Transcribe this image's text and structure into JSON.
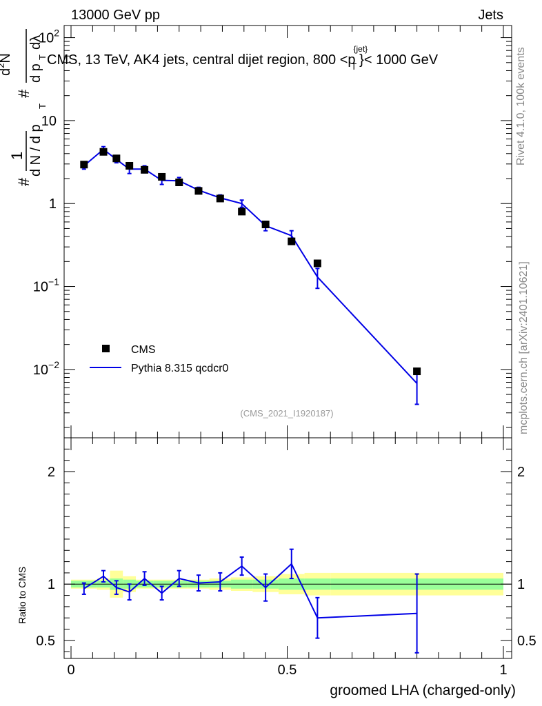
{
  "header": {
    "left": "13000 GeV pp",
    "right": "Jets"
  },
  "plot_title": "CMS, 13 TeV, AK4 jets, central dijet region, 800 <p",
  "plot_title_sup": "{jet}",
  "plot_title_sub": "T",
  "plot_title_end": "}< 1000 GeV",
  "side_label_top": "Rivet 4.1.0,  100k events",
  "side_label_bottom": "mcplots.cern.ch [arXiv:2401.10621]",
  "analysis_id": "(CMS_2021_I1920187)",
  "ylabel_main": {
    "hash1": "#",
    "one": "1",
    "dN": "d N / d p",
    "dN_sub": "T",
    "hash2": "#",
    "d2N": "d",
    "d2N_sup": "2",
    "d2N_end": "N",
    "dpt": "d p",
    "dpt_sub": "T",
    "dlambda": "dλ"
  },
  "ylabel_ratio": "Ratio to CMS",
  "xlabel": "groomed LHA (charged-only)",
  "legend": {
    "data": "CMS",
    "mc": "Pythia 8.315 qcdcr0"
  },
  "colors": {
    "mc": "#0000e6",
    "band_green": "#99ff99",
    "band_yellow": "#ffff99",
    "data": "#000000"
  },
  "chart_data": {
    "type": "line",
    "title": "CMS, 13 TeV, AK4 jets, central dijet region, 800 < pT(jet) < 1000 GeV",
    "xlabel": "groomed LHA (charged-only)",
    "ylabel": "1/dN/dpT d2N/dpT dlambda",
    "xlim": [
      0,
      1
    ],
    "ylim_main": [
      0.0015,
      140
    ],
    "yscale_main": "log",
    "ylim_ratio": [
      0.34,
      2.3
    ],
    "main_ticks": [
      {
        "v": 100,
        "base": "10",
        "exp": "2"
      },
      {
        "v": 10,
        "base": "10",
        "exp": ""
      },
      {
        "v": 1,
        "base": "1",
        "exp": ""
      },
      {
        "v": 0.1,
        "base": "10",
        "exp": "−1"
      },
      {
        "v": 0.01,
        "base": "10",
        "exp": "−2"
      }
    ],
    "ratio_ticks": [
      {
        "v": 2,
        "label": "2"
      },
      {
        "v": 1,
        "label": "1"
      },
      {
        "v": 0.5,
        "label": "0.5"
      }
    ],
    "x_ticks": [
      {
        "v": 0,
        "label": "0"
      },
      {
        "v": 0.5,
        "label": "0.5"
      },
      {
        "v": 1,
        "label": "1"
      }
    ],
    "bin_edges": [
      0.0,
      0.06,
      0.09,
      0.12,
      0.15,
      0.19,
      0.23,
      0.27,
      0.32,
      0.37,
      0.42,
      0.48,
      0.54,
      0.6,
      1.0
    ],
    "data": {
      "name": "CMS",
      "x": [
        0.03,
        0.075,
        0.105,
        0.135,
        0.17,
        0.21,
        0.25,
        0.295,
        0.345,
        0.395,
        0.45,
        0.51,
        0.57,
        0.8
      ],
      "y": [
        2.95,
        4.2,
        3.5,
        2.85,
        2.55,
        2.1,
        1.8,
        1.42,
        1.15,
        0.8,
        0.56,
        0.35,
        0.19,
        0.0095
      ]
    },
    "mc": {
      "name": "Pythia 8.315 qcdcr0",
      "x": [
        0.03,
        0.075,
        0.105,
        0.135,
        0.17,
        0.21,
        0.25,
        0.295,
        0.345,
        0.395,
        0.45,
        0.51,
        0.57,
        0.8
      ],
      "y": [
        2.85,
        4.5,
        3.4,
        2.6,
        2.6,
        1.9,
        1.88,
        1.45,
        1.17,
        1.0,
        0.54,
        0.41,
        0.13,
        0.0068
      ],
      "err": [
        0.25,
        0.35,
        0.3,
        0.3,
        0.25,
        0.2,
        0.18,
        0.12,
        0.1,
        0.1,
        0.07,
        0.06,
        0.035,
        0.003
      ]
    },
    "ratio": {
      "x": [
        0.03,
        0.075,
        0.105,
        0.135,
        0.17,
        0.21,
        0.25,
        0.295,
        0.345,
        0.395,
        0.45,
        0.51,
        0.57,
        0.8
      ],
      "y": [
        0.96,
        1.07,
        0.97,
        0.93,
        1.05,
        0.92,
        1.05,
        1.01,
        1.02,
        1.16,
        0.97,
        1.18,
        0.7,
        0.74
      ],
      "err": [
        0.05,
        0.05,
        0.06,
        0.07,
        0.06,
        0.06,
        0.07,
        0.07,
        0.08,
        0.08,
        0.12,
        0.13,
        0.18,
        0.35
      ],
      "green_half": [
        0.03,
        0.03,
        0.05,
        0.04,
        0.03,
        0.03,
        0.03,
        0.03,
        0.03,
        0.04,
        0.04,
        0.05,
        0.05,
        0.05
      ],
      "yellow_half": [
        0.04,
        0.05,
        0.12,
        0.07,
        0.04,
        0.04,
        0.04,
        0.04,
        0.05,
        0.06,
        0.07,
        0.09,
        0.1,
        0.1
      ]
    }
  }
}
